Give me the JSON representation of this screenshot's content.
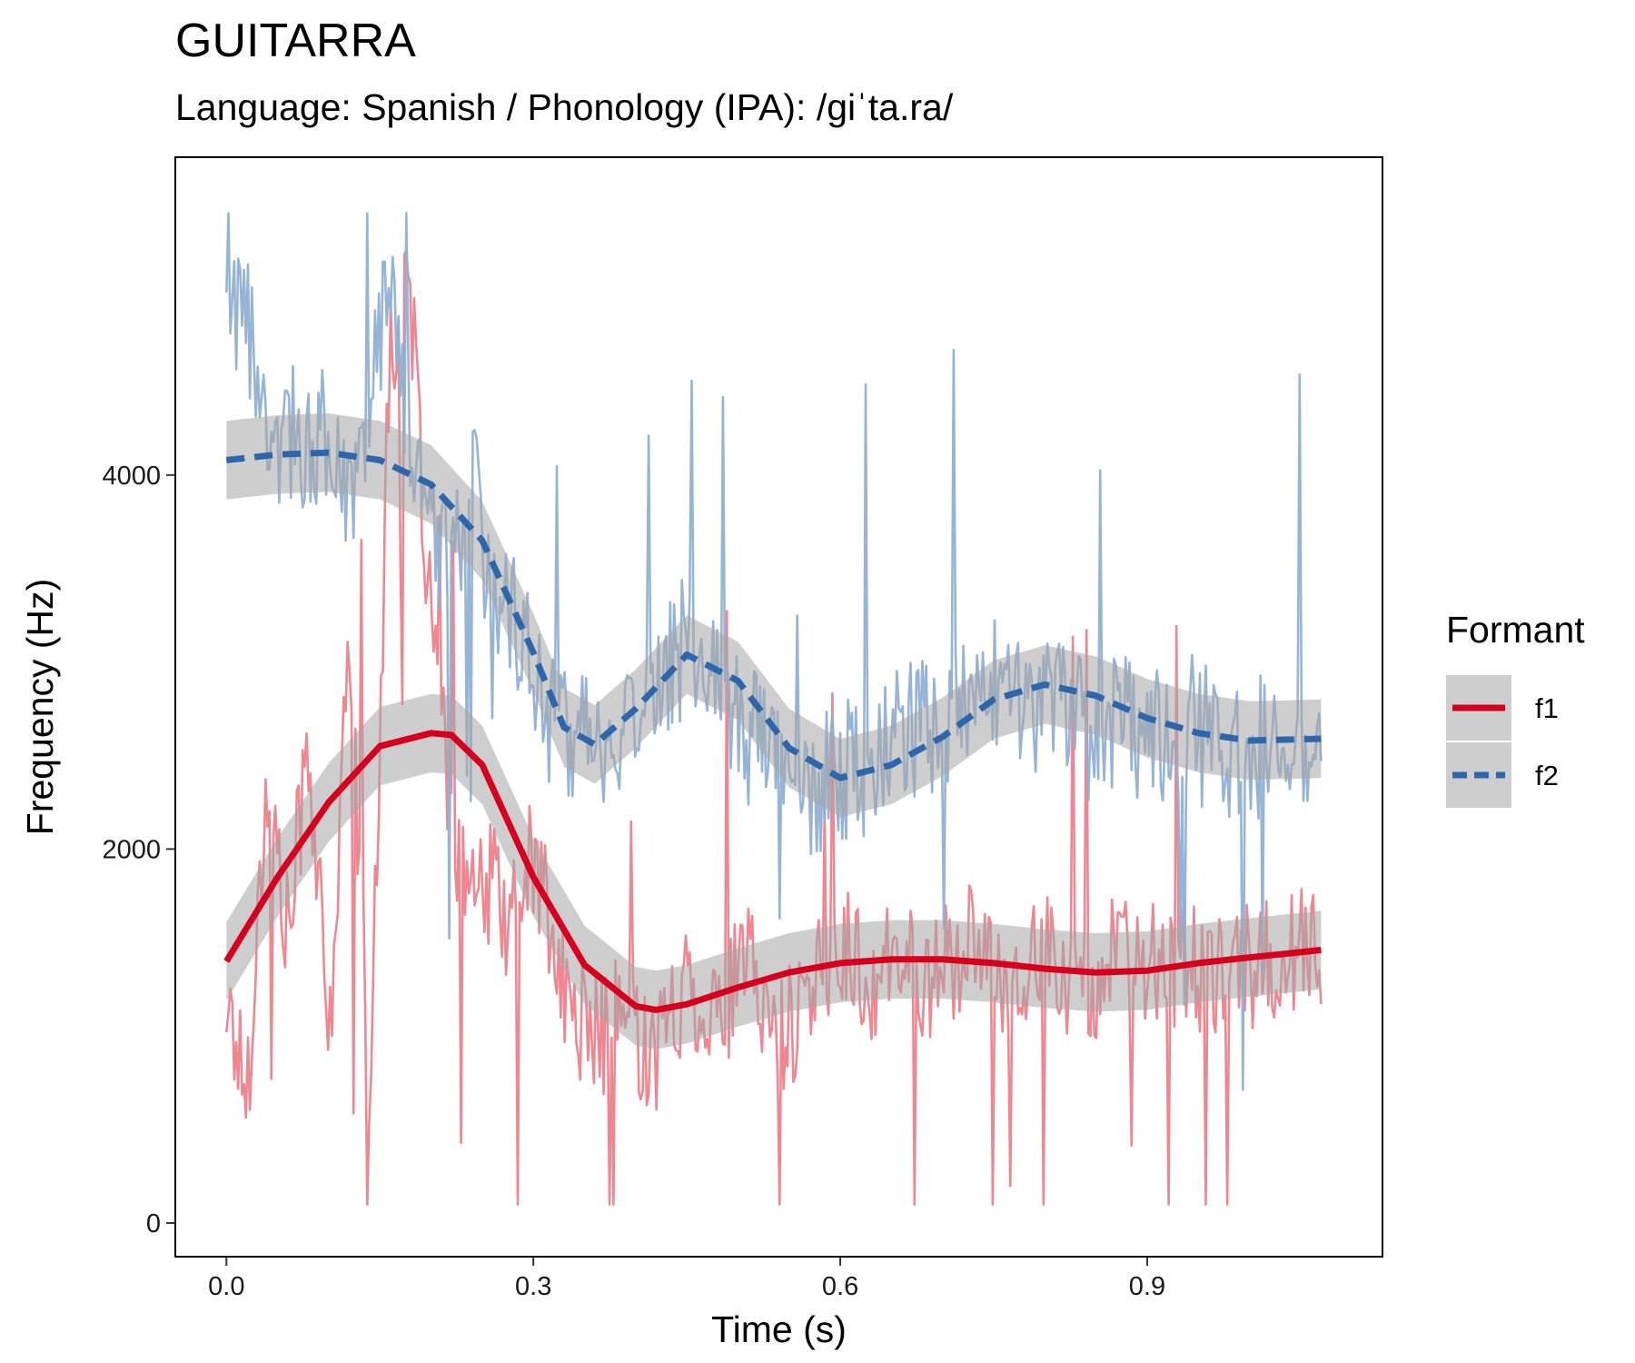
{
  "title": "GUITARRA",
  "subtitle": "Language: Spanish / Phonology (IPA): /giˈta.ra/",
  "chart_data": {
    "type": "line",
    "xlabel": "Time (s)",
    "ylabel": "Frequency (Hz)",
    "xlim": [
      -0.05,
      1.13
    ],
    "ylim": [
      -180,
      5700
    ],
    "xticks": [
      "0.0",
      "0.3",
      "0.6",
      "0.9"
    ],
    "xtick_values": [
      0.0,
      0.3,
      0.6,
      0.9
    ],
    "yticks": [
      "0",
      "2000",
      "4000"
    ],
    "ytick_values": [
      0,
      2000,
      4000
    ],
    "grid": false,
    "legend": {
      "title": "Formant",
      "position": "right"
    },
    "series": [
      {
        "name": "f1",
        "color": "#D7001C",
        "raw_color": "#EE7F8A",
        "linestyle": "solid",
        "raw_x": [
          0.0,
          0.02,
          0.04,
          0.06,
          0.08,
          0.1,
          0.12,
          0.14,
          0.16,
          0.18,
          0.2,
          0.22,
          0.24,
          0.26,
          0.28,
          0.3,
          0.33,
          0.36,
          0.39,
          0.42,
          0.45,
          0.48,
          0.51,
          0.54,
          0.57,
          0.6,
          0.63,
          0.66,
          0.69,
          0.72,
          0.75,
          0.78,
          0.81,
          0.84,
          0.87,
          0.9,
          0.93,
          0.96,
          0.99,
          1.02,
          1.05,
          1.07
        ],
        "raw_y": [
          1200,
          700,
          2400,
          1500,
          2600,
          900,
          3100,
          700,
          4700,
          4900,
          3200,
          2100,
          1700,
          1800,
          1600,
          2000,
          1200,
          1000,
          1100,
          900,
          1300,
          1100,
          1400,
          1000,
          1200,
          1500,
          1300,
          1400,
          1300,
          1500,
          1300,
          1400,
          1400,
          1300,
          1400,
          1350,
          1400,
          1300,
          1350,
          1400,
          1450,
          1500
        ],
        "smooth_x": [
          0.0,
          0.05,
          0.1,
          0.15,
          0.2,
          0.22,
          0.25,
          0.3,
          0.35,
          0.4,
          0.42,
          0.45,
          0.5,
          0.55,
          0.6,
          0.65,
          0.7,
          0.75,
          0.8,
          0.85,
          0.9,
          0.95,
          1.0,
          1.07
        ],
        "smooth_y": [
          1400,
          1850,
          2250,
          2550,
          2620,
          2610,
          2450,
          1850,
          1380,
          1160,
          1140,
          1170,
          1260,
          1340,
          1390,
          1410,
          1410,
          1390,
          1360,
          1340,
          1350,
          1390,
          1420,
          1460
        ]
      },
      {
        "name": "f2",
        "color": "#2E66AB",
        "raw_color": "#8FB0D4",
        "linestyle": "dashed",
        "raw_x": [
          0.0,
          0.02,
          0.04,
          0.06,
          0.08,
          0.1,
          0.12,
          0.14,
          0.16,
          0.18,
          0.2,
          0.22,
          0.24,
          0.26,
          0.28,
          0.3,
          0.33,
          0.36,
          0.39,
          0.42,
          0.45,
          0.48,
          0.51,
          0.54,
          0.57,
          0.6,
          0.63,
          0.66,
          0.69,
          0.72,
          0.75,
          0.78,
          0.81,
          0.84,
          0.87,
          0.9,
          0.93,
          0.96,
          0.99,
          1.02,
          1.05,
          1.07
        ],
        "raw_y": [
          4900,
          4800,
          4000,
          4300,
          4100,
          4200,
          3900,
          4300,
          5000,
          4200,
          3800,
          3500,
          4000,
          3400,
          3300,
          2900,
          2600,
          2500,
          2700,
          2900,
          3100,
          3000,
          2600,
          2500,
          2300,
          2400,
          2400,
          2600,
          2700,
          2800,
          2900,
          2800,
          2800,
          2600,
          2700,
          2600,
          2700,
          2600,
          2500,
          2600,
          2500,
          2600
        ],
        "smooth_x": [
          0.0,
          0.05,
          0.1,
          0.15,
          0.2,
          0.25,
          0.3,
          0.33,
          0.36,
          0.4,
          0.45,
          0.5,
          0.55,
          0.6,
          0.65,
          0.7,
          0.75,
          0.8,
          0.85,
          0.9,
          0.95,
          1.0,
          1.07
        ],
        "smooth_y": [
          4080,
          4110,
          4120,
          4080,
          3950,
          3650,
          3050,
          2650,
          2560,
          2750,
          3040,
          2900,
          2540,
          2380,
          2450,
          2600,
          2800,
          2880,
          2820,
          2700,
          2620,
          2580,
          2590
        ]
      }
    ]
  }
}
